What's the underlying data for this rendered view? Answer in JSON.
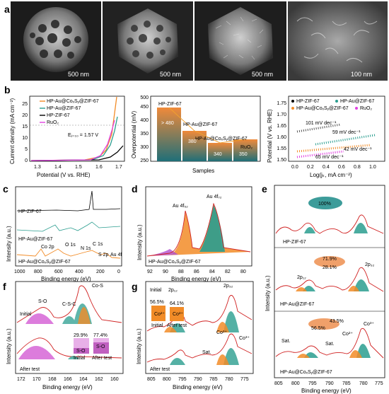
{
  "sem": {
    "letter": "a",
    "scale_bars": [
      "500 nm",
      "500 nm",
      "500 nm",
      "100 nm"
    ]
  },
  "b1": {
    "letter": "b",
    "ylabel": "Current density (mA cm⁻²)",
    "xlabel": "Potential (V vs. RHE)",
    "xticks": [
      "1.3",
      "1.4",
      "1.5",
      "1.6",
      "1.7"
    ],
    "yticks": [
      "0",
      "5",
      "10",
      "15",
      "20",
      "25"
    ],
    "legend": [
      "HP-Au@CoₓSᵧ@ZIF-67",
      "HP-Au@ZIF-67",
      "HP-ZIF-67",
      "RuO₂"
    ],
    "annotation": "Eⱼ₌₁₀ = 1.57 V",
    "colors": [
      "#f28c28",
      "#2a9d8f",
      "#000000",
      "#e040e0"
    ]
  },
  "b2": {
    "ylabel": "Overpotential (mV)",
    "xlabel": "Samples",
    "yticks": [
      "250",
      "300",
      "350",
      "400",
      "450",
      "500"
    ],
    "bar_labels": [
      "HP-ZIF-67",
      "HP-Au@ZIF-67",
      "HP-Au@CoₓSᵧ@ZIF-67",
      "RuO₂"
    ],
    "bar_values_text": [
      "> 480",
      "380",
      "340",
      "350"
    ]
  },
  "b3": {
    "ylabel": "Potential (V vs. RHE)",
    "xlabel": "Log(jₖ, mA cm⁻²)",
    "xticks": [
      "0.0",
      "0.2",
      "0.4",
      "0.6",
      "0.8",
      "1.0"
    ],
    "yticks": [
      "1.50",
      "1.55",
      "1.60",
      "1.65",
      "1.70",
      "1.75"
    ],
    "legend": [
      "HP-ZIF-67",
      "HP-Au@ZIF-67",
      "HP-Au@CoₓSᵧ@ZIF-67",
      "RuO₂"
    ],
    "slopes": [
      "101 mV dec⁻¹",
      "59 mV dec⁻¹",
      "42 mV dec⁻¹",
      "65 mV dec⁻¹"
    ]
  },
  "c": {
    "letter": "c",
    "ylabel": "Intensity (a.u.)",
    "xlabel": "Binding energy (eV)",
    "xticks": [
      "1000",
      "800",
      "600",
      "400",
      "200",
      "0"
    ],
    "traces": [
      "HP-ZIF-67",
      "HP-Au@ZIF-67",
      "HP-Au@CoₓSᵧ@ZIF-67"
    ],
    "peaks": [
      "Co 2p",
      "O 1s",
      "N 1s",
      "C 1s",
      "S 2p",
      "Au 4f"
    ]
  },
  "d": {
    "letter": "d",
    "ylabel": "Intensity (a.u.)",
    "xlabel": "Binding energy (eV)",
    "xticks": [
      "92",
      "90",
      "88",
      "86",
      "84",
      "82",
      "80"
    ],
    "peaks": [
      "Au 4f₅₂",
      "Au 4f₇₂"
    ],
    "sample": "HP-Au@CoₓSᵧ@ZIF-67"
  },
  "e": {
    "letter": "e",
    "ylabel": "Intensity (a.u.)",
    "xlabel": "Binding energy (eV)",
    "xticks": [
      "805",
      "800",
      "795",
      "790",
      "785",
      "780",
      "775"
    ],
    "samples": [
      "HP-ZIF-67",
      "HP-Au@ZIF-67",
      "HP-Au@CoₓSᵧ@ZIF-67"
    ],
    "pie1": [
      "100%"
    ],
    "pie2": [
      "71.9%",
      "28.1%"
    ],
    "pie3": [
      "43.5%",
      "56.5%"
    ],
    "labels": [
      "2p₁₂",
      "2p₃₂",
      "Sat.",
      "Sat.",
      "Co²⁺",
      "Co³⁺"
    ]
  },
  "f": {
    "letter": "f",
    "ylabel": "Intensity (a.u.)",
    "xlabel": "Binding energy (eV)",
    "xticks": [
      "172",
      "170",
      "168",
      "166",
      "164",
      "162",
      "160"
    ],
    "states": [
      "Initial",
      "After test"
    ],
    "peaks": [
      "S-O",
      "C-S-C",
      "Co-S"
    ],
    "inset_values": [
      "29.9%",
      "77.4%"
    ],
    "inset_labels": [
      "S-O",
      "S-O"
    ],
    "inset_x": [
      "Initial",
      "After test"
    ]
  },
  "g": {
    "letter": "g",
    "ylabel": "Intensity (a.u.)",
    "xlabel": "Binding energy (eV)",
    "xticks": [
      "805",
      "800",
      "795",
      "790",
      "785",
      "780",
      "775"
    ],
    "states": [
      "Initial",
      "After test"
    ],
    "peaks": [
      "2p₁₂",
      "2p₃₂",
      "Sat.",
      "Co²⁺",
      "Co³⁺"
    ],
    "inset_values": [
      "56.5%",
      "64.1%"
    ],
    "inset_species": [
      "Co²⁺",
      "Co²⁺"
    ],
    "inset_x": [
      "Initial",
      "After test"
    ]
  }
}
